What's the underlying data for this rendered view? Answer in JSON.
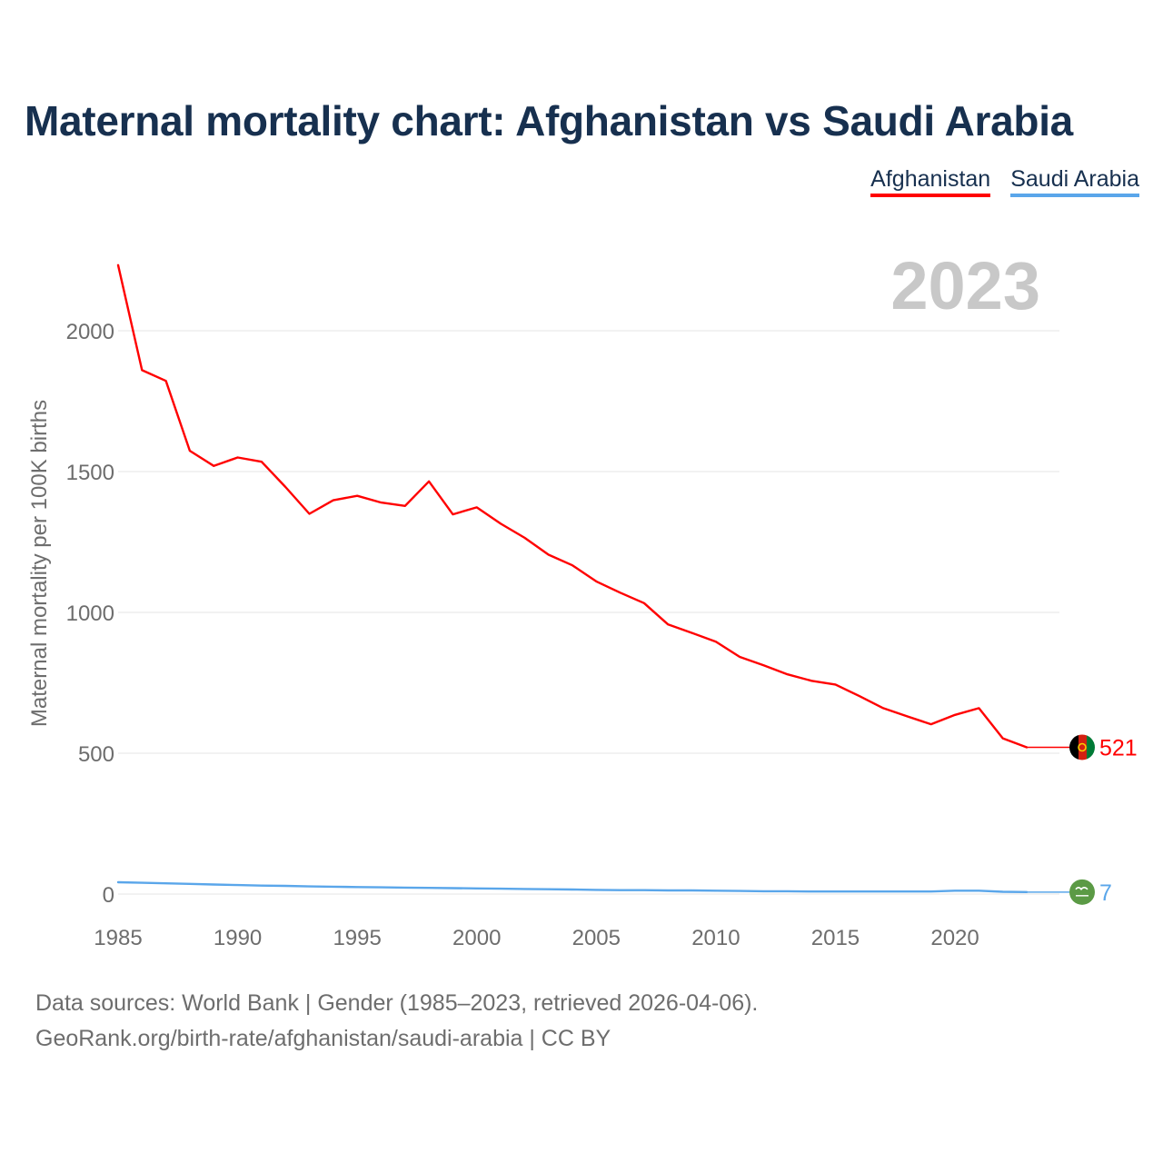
{
  "page": {
    "title": "Maternal mortality chart: Afghanistan vs Saudi Arabia",
    "footer_sources": "Data sources: World Bank | Gender (1985–2023, retrieved 2026-04-06).",
    "footer_attribution": "GeoRank.org/birth-rate/afghanistan/saudi-arabia | CC BY"
  },
  "legend": [
    {
      "label": "Afghanistan",
      "color": "#ff0000"
    },
    {
      "label": "Saudi Arabia",
      "color": "#5aa6ea"
    }
  ],
  "chart_data": {
    "type": "line",
    "title": "Maternal mortality chart: Afghanistan vs Saudi Arabia",
    "year_label": "2023",
    "xlabel": "",
    "ylabel": "Maternal mortality per 100K births",
    "xlim": [
      1985,
      2023
    ],
    "ylim": [
      0,
      2000
    ],
    "x_ticks": [
      1985,
      1990,
      1995,
      2000,
      2005,
      2010,
      2015,
      2020
    ],
    "y_ticks": [
      0,
      500,
      1000,
      1500,
      2000
    ],
    "grid": true,
    "x": [
      1985,
      1986,
      1987,
      1988,
      1989,
      1990,
      1991,
      1992,
      1993,
      1994,
      1995,
      1996,
      1997,
      1998,
      1999,
      2000,
      2001,
      2002,
      2003,
      2004,
      2005,
      2006,
      2007,
      2008,
      2009,
      2010,
      2011,
      2012,
      2013,
      2014,
      2015,
      2016,
      2017,
      2018,
      2019,
      2020,
      2021,
      2022,
      2023
    ],
    "series": [
      {
        "name": "Afghanistan",
        "color": "#ff0000",
        "end_label": "521",
        "values": [
          2233,
          1860,
          1822,
          1574,
          1520,
          1550,
          1535,
          1445,
          1350,
          1398,
          1414,
          1390,
          1378,
          1465,
          1348,
          1373,
          1315,
          1265,
          1205,
          1167,
          1110,
          1070,
          1033,
          957,
          927,
          896,
          842,
          812,
          780,
          757,
          744,
          703,
          660,
          631,
          603,
          636,
          660,
          553,
          521
        ]
      },
      {
        "name": "Saudi Arabia",
        "color": "#5aa6ea",
        "end_label": "7",
        "values": [
          42,
          40,
          38,
          36,
          34,
          32,
          30,
          29,
          27,
          26,
          25,
          24,
          23,
          22,
          21,
          20,
          19,
          18,
          17,
          16,
          15,
          14,
          14,
          13,
          13,
          12,
          11,
          10,
          10,
          9,
          9,
          9,
          9,
          9,
          9,
          12,
          12,
          8,
          7
        ]
      }
    ]
  }
}
